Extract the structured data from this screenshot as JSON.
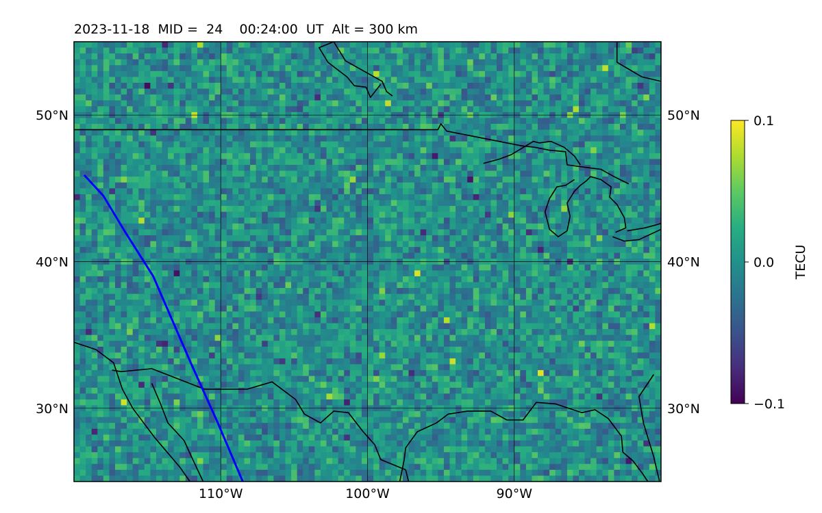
{
  "chart_data": {
    "type": "heatmap",
    "title": "2023-11-18  MID =  24    00:24:00  UT  Alt = 300 km",
    "lon_range": [
      -120,
      -80
    ],
    "lat_range": [
      25,
      55
    ],
    "x_ticks": [
      {
        "value": -110,
        "label": "110°W"
      },
      {
        "value": -100,
        "label": "100°W"
      },
      {
        "value": -90,
        "label": "90°W"
      }
    ],
    "y_ticks": [
      {
        "value": 30,
        "label": "30°N"
      },
      {
        "value": 40,
        "label": "40°N"
      },
      {
        "value": 50,
        "label": "50°N"
      }
    ],
    "grid": true,
    "colormap": "viridis",
    "colorbar": {
      "label": "TECU",
      "min": -0.1,
      "max": 0.1,
      "ticks": [
        {
          "value": 0.1,
          "label": "0.1"
        },
        {
          "value": 0.0,
          "label": "0.0"
        },
        {
          "value": -0.1,
          "label": "−0.1"
        }
      ]
    },
    "field": {
      "description_level": "mostly near 0.0 TECU with scattered small positive and negative anomalies",
      "typical_value": 0.0
    },
    "track": {
      "color": "#0000ff",
      "points": [
        [
          -119.3,
          45.9
        ],
        [
          -118.0,
          44.5
        ],
        [
          -116.5,
          42.0
        ],
        [
          -114.6,
          39.0
        ],
        [
          -113.3,
          36.0
        ],
        [
          -112.0,
          33.0
        ],
        [
          -110.2,
          29.0
        ],
        [
          -108.5,
          25.0
        ]
      ]
    },
    "coastline_color": "#000000"
  }
}
